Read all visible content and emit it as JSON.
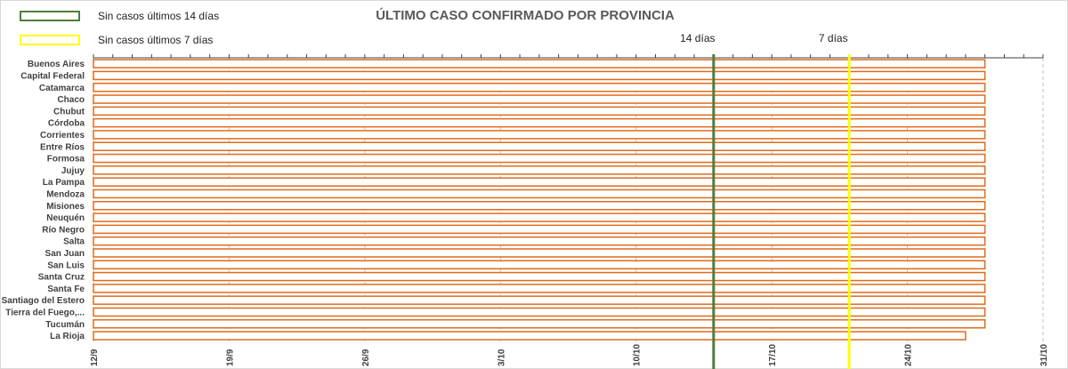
{
  "legend": {
    "items": [
      {
        "label": "Sin casos últimos 14 días",
        "color": "#507d3a"
      },
      {
        "label": "Sin casos últimos 7 días",
        "color": "#ffff00"
      }
    ]
  },
  "chart_data": {
    "type": "bar",
    "orientation": "horizontal",
    "title": "ÚLTIMO CASO CONFIRMADO POR PROVINCIA",
    "bar_fill": "#ffffff",
    "bar_stroke": "#e06a1b",
    "grid": true,
    "x_axis": {
      "type": "date",
      "range": [
        "2020-09-12",
        "2020-10-31"
      ],
      "ticks": [
        {
          "date": "2020-09-12",
          "label": "12/9"
        },
        {
          "date": "2020-09-19",
          "label": "19/9"
        },
        {
          "date": "2020-09-26",
          "label": "26/9"
        },
        {
          "date": "2020-10-03",
          "label": "3/10"
        },
        {
          "date": "2020-10-10",
          "label": "10/10"
        },
        {
          "date": "2020-10-17",
          "label": "17/10"
        },
        {
          "date": "2020-10-24",
          "label": "24/10"
        },
        {
          "date": "2020-10-31",
          "label": "31/10"
        }
      ]
    },
    "reference_lines": [
      {
        "label": "14 días",
        "date": "2020-10-14",
        "color": "#507d3a"
      },
      {
        "label": "7 días",
        "date": "2020-10-21",
        "color": "#ffff00"
      }
    ],
    "categories": [
      "Buenos Aires",
      "Capital Federal",
      "Catamarca",
      "Chaco",
      "Chubut",
      "Córdoba",
      "Corrientes",
      "Entre Ríos",
      "Formosa",
      "Jujuy",
      "La Pampa",
      "Mendoza",
      "Misiones",
      "Neuquén",
      "Río Negro",
      "Salta",
      "San Juan",
      "San Luis",
      "Santa Cruz",
      "Santa Fe",
      "Santiago del Estero",
      "Tierra del Fuego,...",
      "Tucumán",
      "La Rioja"
    ],
    "values": [
      "2020-10-28",
      "2020-10-28",
      "2020-10-28",
      "2020-10-28",
      "2020-10-28",
      "2020-10-28",
      "2020-10-28",
      "2020-10-28",
      "2020-10-28",
      "2020-10-28",
      "2020-10-28",
      "2020-10-28",
      "2020-10-28",
      "2020-10-28",
      "2020-10-28",
      "2020-10-28",
      "2020-10-28",
      "2020-10-28",
      "2020-10-28",
      "2020-10-28",
      "2020-10-28",
      "2020-10-28",
      "2020-10-28",
      "2020-10-27"
    ]
  }
}
